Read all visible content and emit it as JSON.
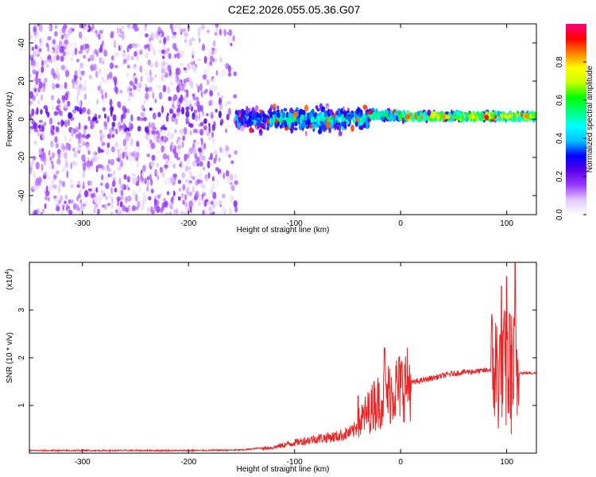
{
  "figure_title": "C2E2.2026.055.05.36.G07",
  "chart_data": [
    {
      "type": "heatmap",
      "title": "C2E2.2026.055.05.36.G07",
      "xlabel": "Height of straight line (km)",
      "ylabel": "Frequency (Hz)",
      "xlim": [
        -350,
        128
      ],
      "ylim": [
        -50,
        50
      ],
      "x_ticks": [
        -300,
        -200,
        -100,
        0,
        100
      ],
      "y_ticks": [
        -40,
        -20,
        0,
        20,
        40
      ],
      "colorbar": {
        "label": "Normalized spectral amplitude",
        "range": [
          0,
          1
        ],
        "ticks": [
          0.0,
          0.2,
          0.4,
          0.6,
          0.8
        ],
        "colors": [
          "#ffffff",
          "#e2c8ff",
          "#9b3cff",
          "#5a00e6",
          "#0000ff",
          "#00bfff",
          "#00ffff",
          "#00ff80",
          "#00ff00",
          "#c8ff00",
          "#ffff00",
          "#ff8000",
          "#ff0000",
          "#ff0080"
        ]
      },
      "regions": [
        {
          "x_range": [
            -350,
            -155
          ],
          "frequency_spread": [
            -50,
            50
          ],
          "amplitude": 0.1,
          "description_level": "noise"
        },
        {
          "x_range": [
            -155,
            -120
          ],
          "frequency_center": 0,
          "frequency_width": 8,
          "amplitude": 0.35
        },
        {
          "x_range": [
            -120,
            -30
          ],
          "frequency_center": 0,
          "frequency_width": 8,
          "amplitude": 0.45
        },
        {
          "x_range": [
            -30,
            0
          ],
          "frequency_center": 2,
          "frequency_width": 3,
          "amplitude": 0.55
        },
        {
          "x_range": [
            0,
            128
          ],
          "frequency_center": 1.5,
          "frequency_width": 2.5,
          "amplitude": 0.75
        }
      ]
    },
    {
      "type": "line",
      "xlabel": "Height of straight line (km)",
      "ylabel": "SNR (10 * v/v)",
      "y_scale_label": "(x10",
      "y_scale_exponent": "4",
      "xlim": [
        -350,
        128
      ],
      "ylim": [
        0,
        4
      ],
      "x_ticks": [
        -300,
        -200,
        -100,
        0,
        100
      ],
      "y_ticks": [
        1,
        2,
        3
      ],
      "series": [
        {
          "color": "#ee2222",
          "envelope": [
            [
              -350,
              0.04
            ],
            [
              -300,
              0.04
            ],
            [
              -250,
              0.04
            ],
            [
              -200,
              0.04
            ],
            [
              -150,
              0.05
            ],
            [
              -120,
              0.12
            ],
            [
              -100,
              0.22
            ],
            [
              -80,
              0.3
            ],
            [
              -60,
              0.35
            ],
            [
              -45,
              0.45
            ],
            [
              -35,
              0.75
            ],
            [
              -25,
              1.0
            ],
            [
              -15,
              1.2
            ],
            [
              -5,
              1.35
            ],
            [
              5,
              1.45
            ],
            [
              15,
              1.5
            ],
            [
              25,
              1.55
            ],
            [
              35,
              1.6
            ],
            [
              45,
              1.65
            ],
            [
              60,
              1.7
            ],
            [
              75,
              1.72
            ],
            [
              85,
              1.75
            ],
            [
              92,
              1.75
            ],
            [
              100,
              1.7
            ],
            [
              110,
              1.7
            ],
            [
              115,
              1.68
            ],
            [
              128,
              1.68
            ]
          ],
          "spikes": [
            [
              -15,
              2.2
            ],
            [
              -25,
              1.5
            ],
            [
              -40,
              1.2
            ],
            [
              95,
              3.5
            ],
            [
              100,
              3.7
            ],
            [
              103,
              2.9
            ],
            [
              108,
              4.0
            ]
          ]
        }
      ]
    }
  ]
}
